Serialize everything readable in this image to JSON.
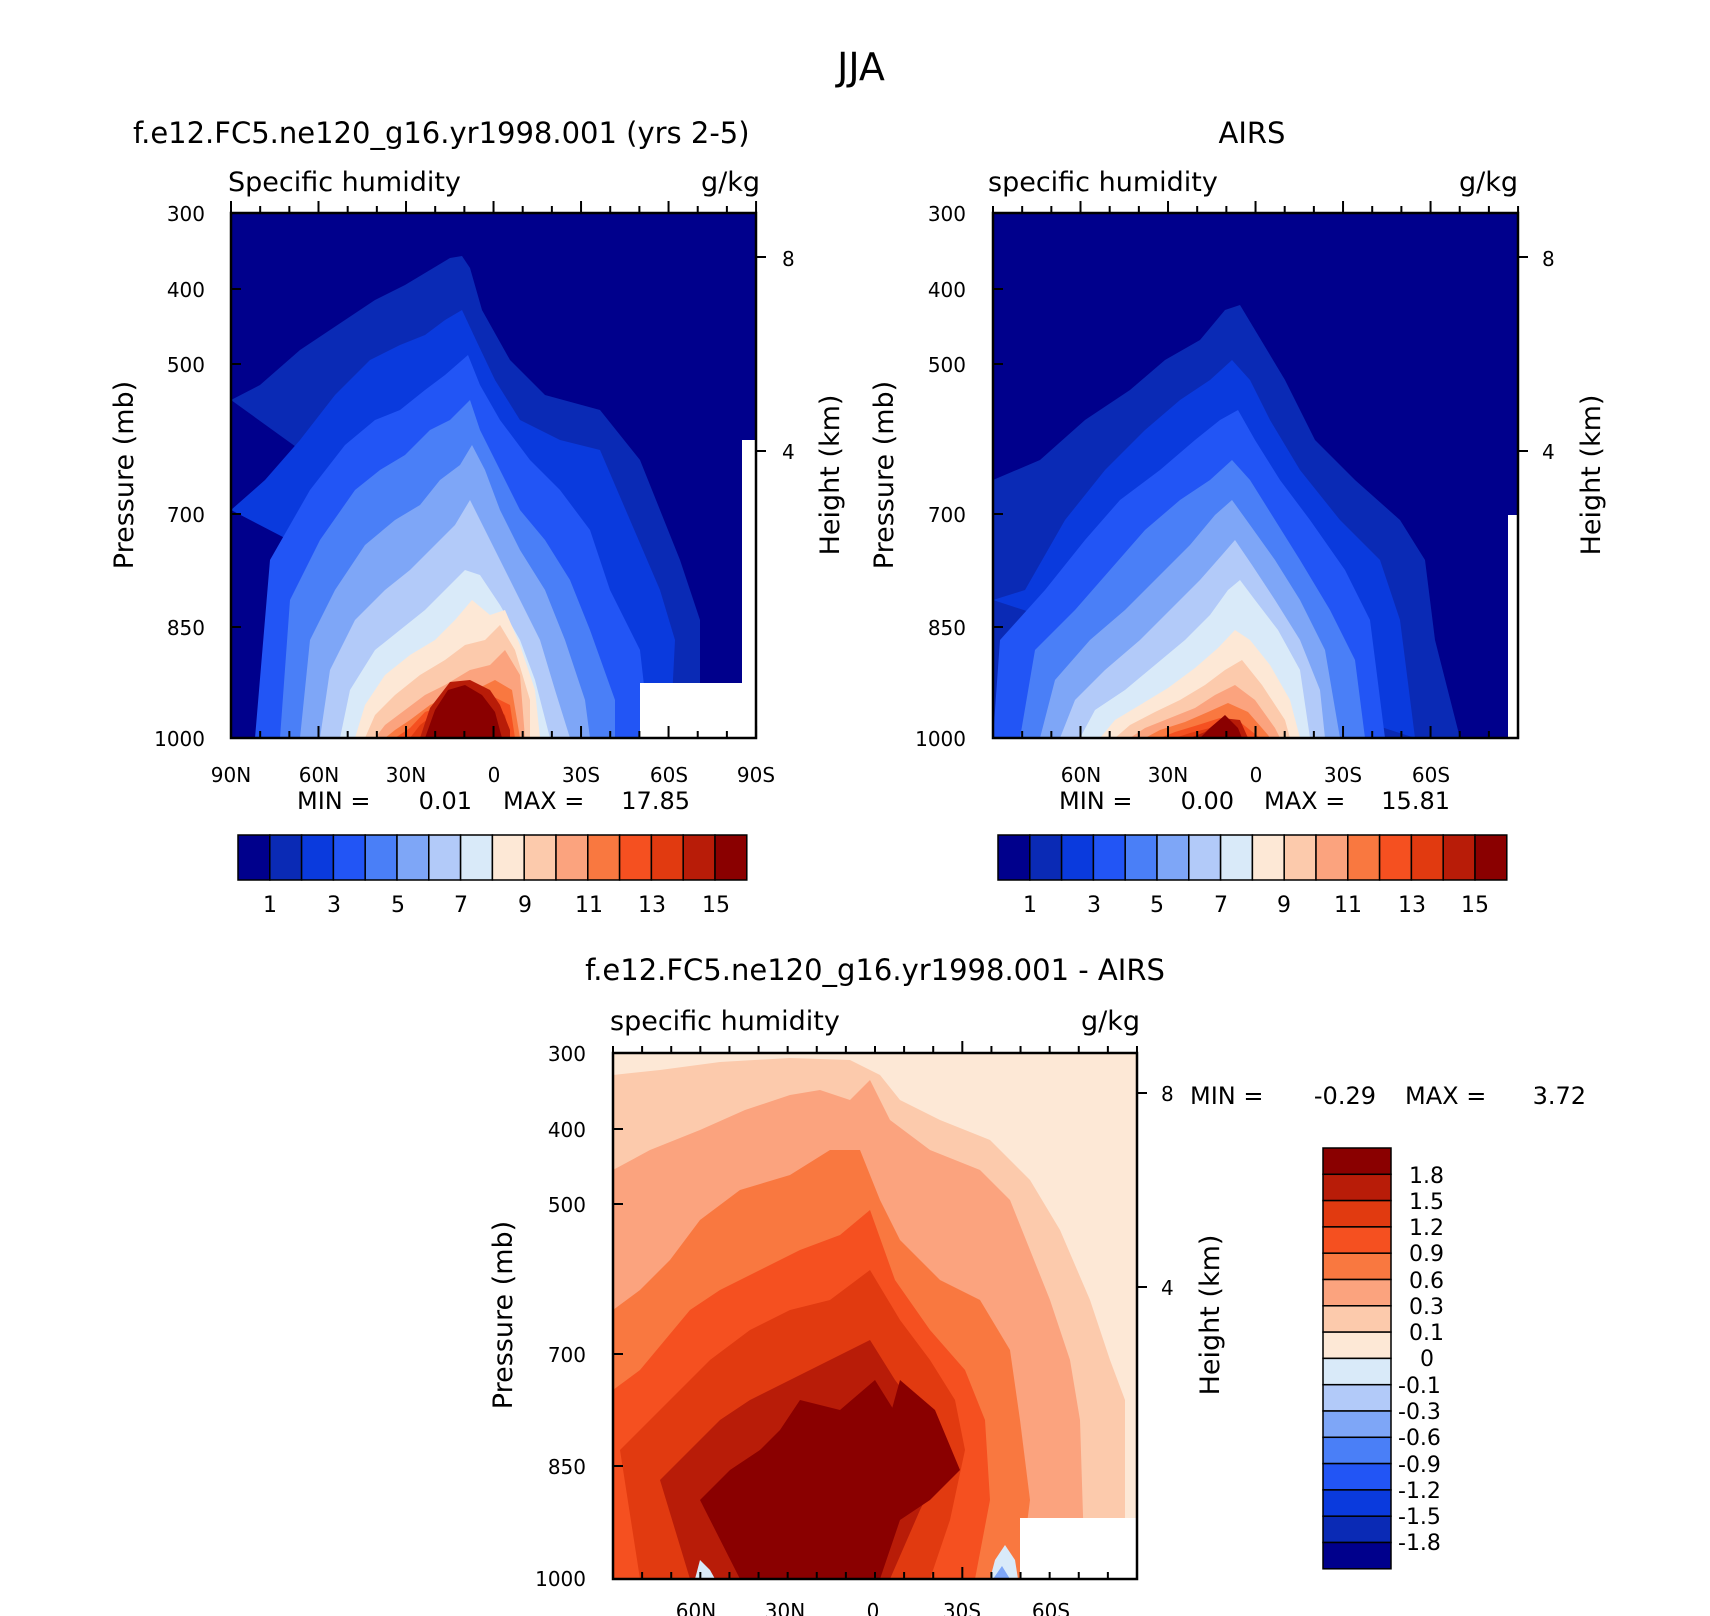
{
  "figure": {
    "title": "JJA",
    "contour_colors": [
      "#00008C",
      "#0A2AB5",
      "#0A3ADD",
      "#2255F5",
      "#4A7FF7",
      "#7EA6F7",
      "#B2CAF9",
      "#D9EAF9",
      "#FDE8D6",
      "#FCCAAC",
      "#FBA37E",
      "#F97840",
      "#F55020",
      "#E13A10",
      "#B81C08",
      "#8A0000"
    ]
  },
  "chart_data": [
    {
      "type": "heatmap",
      "panel": "model",
      "title": "f.e12.FC5.ne120_g16.yr1998.001 (yrs 2-5)",
      "left_label": "Specific humidity",
      "right_label": "g/kg",
      "ylabel": "Pressure (mb)",
      "ylabel_right": "Height (km)",
      "yticks": [
        "300",
        "400",
        "500",
        "700",
        "850",
        "1000"
      ],
      "yticks_right": [
        "8",
        "4"
      ],
      "xticks": [
        "90N",
        "60N",
        "30N",
        "0",
        "30S",
        "60S",
        "90S"
      ],
      "xlim": [
        90,
        -90
      ],
      "ylim": [
        1000,
        300
      ],
      "min_label": "MIN =",
      "min_value": "0.01",
      "max_label": "MAX =",
      "max_value": "17.85",
      "colorbar_ticks": [
        "1",
        "3",
        "5",
        "7",
        "9",
        "11",
        "13",
        "15"
      ],
      "max_pressure_level_by_lat": {
        "lat": [
          90,
          60,
          30,
          10,
          0,
          -30,
          -60,
          -90
        ],
        "p": [
          540,
          450,
          380,
          355,
          360,
          520,
          610,
          640
        ]
      }
    },
    {
      "type": "heatmap",
      "panel": "obs",
      "title": "AIRS",
      "left_label": "specific humidity",
      "right_label": "g/kg",
      "ylabel": "Pressure (mb)",
      "ylabel_right": "Height (km)",
      "yticks": [
        "300",
        "400",
        "500",
        "700",
        "850",
        "1000"
      ],
      "yticks_right": [
        "8",
        "4"
      ],
      "xticks": [
        "60N",
        "30N",
        "0",
        "30S",
        "60S"
      ],
      "xlim": [
        90,
        -90
      ],
      "ylim": [
        1000,
        300
      ],
      "min_label": "MIN =",
      "min_value": "0.00",
      "max_label": "MAX =",
      "max_value": "15.81",
      "colorbar_ticks": [
        "1",
        "3",
        "5",
        "7",
        "9",
        "11",
        "13",
        "15"
      ]
    },
    {
      "type": "heatmap",
      "panel": "difference",
      "title": "f.e12.FC5.ne120_g16.yr1998.001 - AIRS",
      "left_label": "specific humidity",
      "right_label": "g/kg",
      "ylabel": "Pressure (mb)",
      "ylabel_right": "Height (km)",
      "yticks": [
        "300",
        "400",
        "500",
        "700",
        "850",
        "1000"
      ],
      "yticks_right": [
        "8",
        "4"
      ],
      "xticks": [
        "60N",
        "30N",
        "0",
        "30S",
        "60S"
      ],
      "xlim": [
        90,
        -90
      ],
      "ylim": [
        1000,
        300
      ],
      "min_label": "MIN =",
      "min_value": "-0.29",
      "max_label": "MAX =",
      "max_value": "3.72",
      "colorbar_ticks": [
        "1.8",
        "1.5",
        "1.2",
        "0.9",
        "0.6",
        "0.3",
        "0.1",
        "0",
        "-0.1",
        "-0.3",
        "-0.6",
        "-0.9",
        "-1.2",
        "-1.5",
        "-1.8"
      ]
    }
  ]
}
